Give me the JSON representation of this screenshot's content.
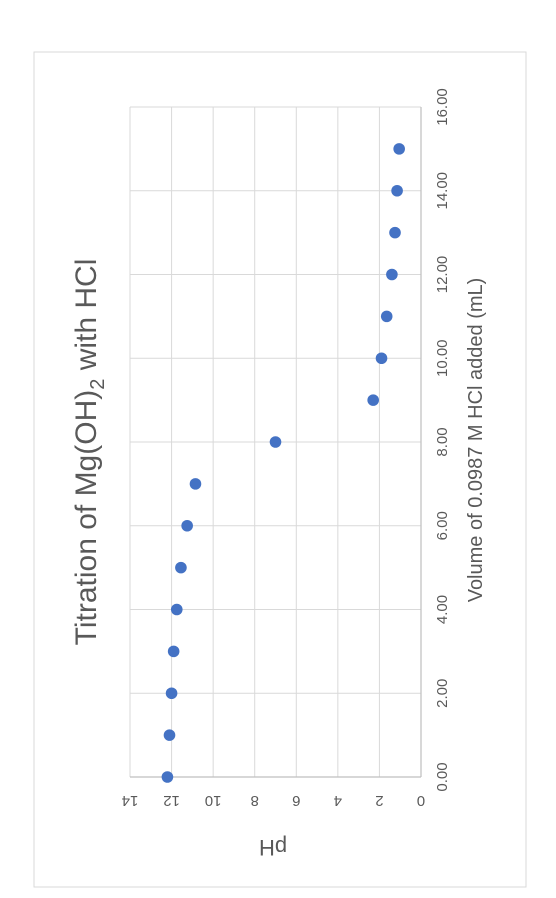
{
  "chart_data": {
    "type": "scatter",
    "title_main": "Titration of  Mg(OH)",
    "title_sub": "2",
    "title_tail": " with HCl",
    "xlabel": "Volume of 0.0987 M HCl added (mL)",
    "ylabel": "pH",
    "xlim": [
      0,
      16
    ],
    "ylim": [
      0,
      14
    ],
    "x_ticks": [
      "0.00",
      "2.00",
      "4.00",
      "6.00",
      "8.00",
      "10.00",
      "12.00",
      "14.00",
      "16.00"
    ],
    "y_ticks": [
      "0",
      "2",
      "4",
      "6",
      "8",
      "10",
      "12",
      "14"
    ],
    "grid": true,
    "orientation": "rotated 90° counter-clockwise",
    "marker_color": "#4472C4",
    "points": [
      {
        "x": 0,
        "y": 12.2
      },
      {
        "x": 1,
        "y": 12.1
      },
      {
        "x": 2,
        "y": 12.0
      },
      {
        "x": 3,
        "y": 11.9
      },
      {
        "x": 4,
        "y": 11.75
      },
      {
        "x": 5,
        "y": 11.55
      },
      {
        "x": 6,
        "y": 11.25
      },
      {
        "x": 7,
        "y": 10.85
      },
      {
        "x": 8,
        "y": 7.0
      },
      {
        "x": 9,
        "y": 2.3
      },
      {
        "x": 10,
        "y": 1.9
      },
      {
        "x": 11,
        "y": 1.65
      },
      {
        "x": 12,
        "y": 1.4
      },
      {
        "x": 13,
        "y": 1.25
      },
      {
        "x": 14,
        "y": 1.15
      },
      {
        "x": 15,
        "y": 1.05
      }
    ]
  }
}
